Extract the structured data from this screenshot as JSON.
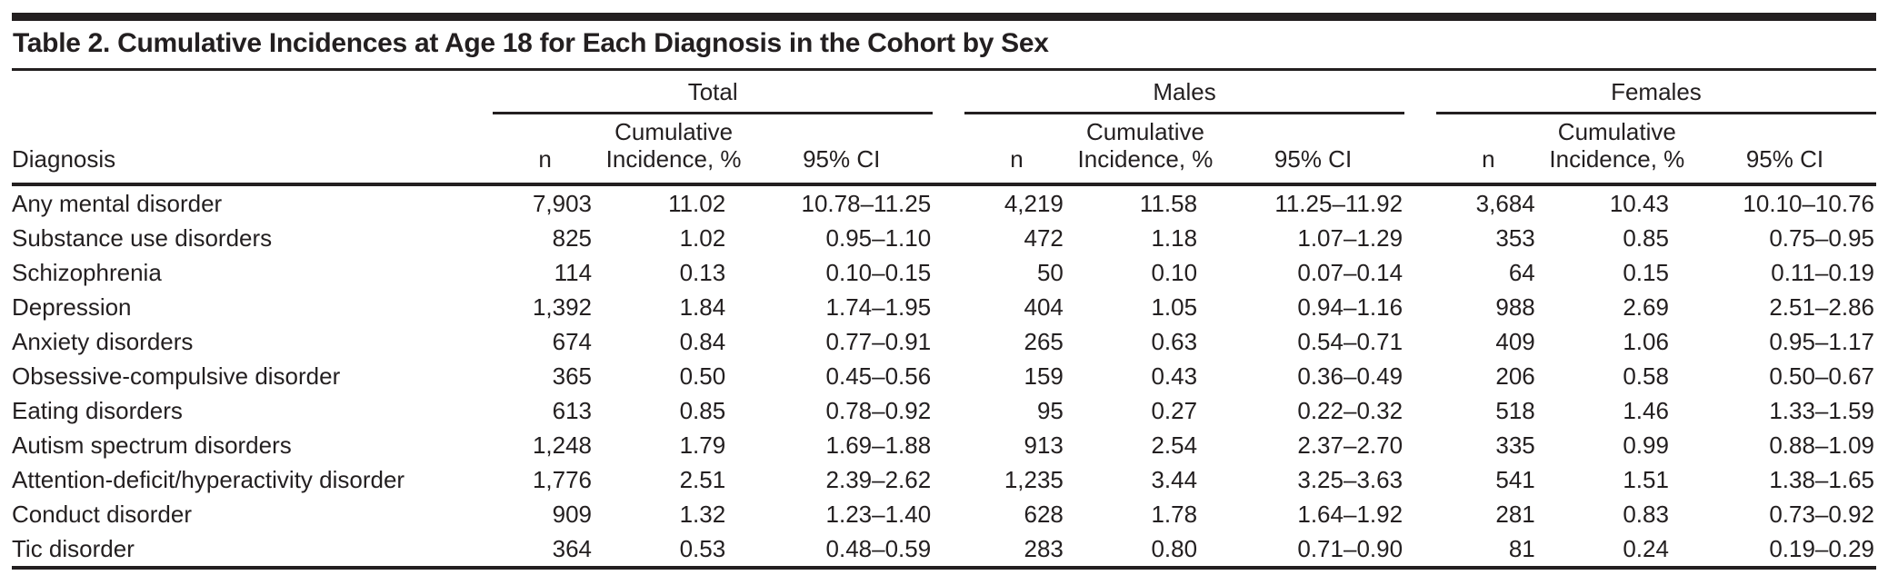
{
  "colors": {
    "text": "#231f20",
    "rule": "#231f20",
    "background": "#ffffff"
  },
  "table": {
    "title": "Table 2. Cumulative Incidences at Age 18 for Each Diagnosis in the Cohort by Sex",
    "groups": [
      {
        "label": "Total"
      },
      {
        "label": "Males"
      },
      {
        "label": "Females"
      }
    ],
    "columns": {
      "diagnosis": "Diagnosis",
      "n": "n",
      "incidence": "Cumulative\nIncidence, %",
      "ci": "95% CI"
    },
    "rows": [
      {
        "diagnosis": "Any mental disorder",
        "total": {
          "n": "7,903",
          "incidence": "11.02",
          "ci": "10.78–11.25"
        },
        "males": {
          "n": "4,219",
          "incidence": "11.58",
          "ci": "11.25–11.92"
        },
        "females": {
          "n": "3,684",
          "incidence": "10.43",
          "ci": "10.10–10.76"
        }
      },
      {
        "diagnosis": "Substance use disorders",
        "total": {
          "n": "825",
          "incidence": "1.02",
          "ci": "0.95–1.10"
        },
        "males": {
          "n": "472",
          "incidence": "1.18",
          "ci": "1.07–1.29"
        },
        "females": {
          "n": "353",
          "incidence": "0.85",
          "ci": "0.75–0.95"
        }
      },
      {
        "diagnosis": "Schizophrenia",
        "total": {
          "n": "114",
          "incidence": "0.13",
          "ci": "0.10–0.15"
        },
        "males": {
          "n": "50",
          "incidence": "0.10",
          "ci": "0.07–0.14"
        },
        "females": {
          "n": "64",
          "incidence": "0.15",
          "ci": "0.11–0.19"
        }
      },
      {
        "diagnosis": "Depression",
        "total": {
          "n": "1,392",
          "incidence": "1.84",
          "ci": "1.74–1.95"
        },
        "males": {
          "n": "404",
          "incidence": "1.05",
          "ci": "0.94–1.16"
        },
        "females": {
          "n": "988",
          "incidence": "2.69",
          "ci": "2.51–2.86"
        }
      },
      {
        "diagnosis": "Anxiety disorders",
        "total": {
          "n": "674",
          "incidence": "0.84",
          "ci": "0.77–0.91"
        },
        "males": {
          "n": "265",
          "incidence": "0.63",
          "ci": "0.54–0.71"
        },
        "females": {
          "n": "409",
          "incidence": "1.06",
          "ci": "0.95–1.17"
        }
      },
      {
        "diagnosis": "Obsessive-compulsive disorder",
        "total": {
          "n": "365",
          "incidence": "0.50",
          "ci": "0.45–0.56"
        },
        "males": {
          "n": "159",
          "incidence": "0.43",
          "ci": "0.36–0.49"
        },
        "females": {
          "n": "206",
          "incidence": "0.58",
          "ci": "0.50–0.67"
        }
      },
      {
        "diagnosis": "Eating disorders",
        "total": {
          "n": "613",
          "incidence": "0.85",
          "ci": "0.78–0.92"
        },
        "males": {
          "n": "95",
          "incidence": "0.27",
          "ci": "0.22–0.32"
        },
        "females": {
          "n": "518",
          "incidence": "1.46",
          "ci": "1.33–1.59"
        }
      },
      {
        "diagnosis": "Autism spectrum disorders",
        "total": {
          "n": "1,248",
          "incidence": "1.79",
          "ci": "1.69–1.88"
        },
        "males": {
          "n": "913",
          "incidence": "2.54",
          "ci": "2.37–2.70"
        },
        "females": {
          "n": "335",
          "incidence": "0.99",
          "ci": "0.88–1.09"
        }
      },
      {
        "diagnosis": "Attention-deficit/hyperactivity disorder",
        "total": {
          "n": "1,776",
          "incidence": "2.51",
          "ci": "2.39–2.62"
        },
        "males": {
          "n": "1,235",
          "incidence": "3.44",
          "ci": "3.25–3.63"
        },
        "females": {
          "n": "541",
          "incidence": "1.51",
          "ci": "1.38–1.65"
        }
      },
      {
        "diagnosis": "Conduct disorder",
        "total": {
          "n": "909",
          "incidence": "1.32",
          "ci": "1.23–1.40"
        },
        "males": {
          "n": "628",
          "incidence": "1.78",
          "ci": "1.64–1.92"
        },
        "females": {
          "n": "281",
          "incidence": "0.83",
          "ci": "0.73–0.92"
        }
      },
      {
        "diagnosis": "Tic disorder",
        "total": {
          "n": "364",
          "incidence": "0.53",
          "ci": "0.48–0.59"
        },
        "males": {
          "n": "283",
          "incidence": "0.80",
          "ci": "0.71–0.90"
        },
        "females": {
          "n": "81",
          "incidence": "0.24",
          "ci": "0.19–0.29"
        }
      }
    ]
  }
}
